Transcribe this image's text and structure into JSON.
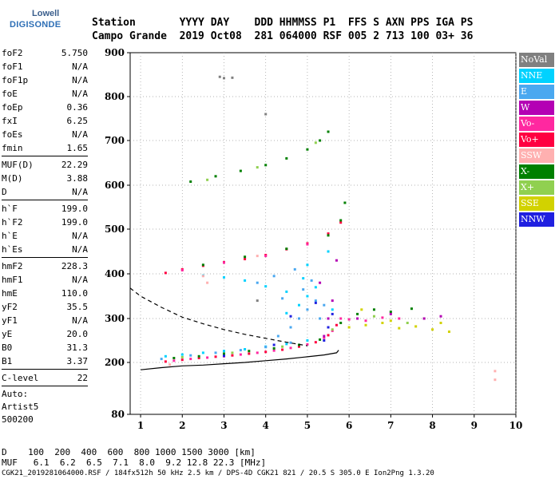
{
  "logo": {
    "line1": "Lowell",
    "line2": "DIGISONDE"
  },
  "header": {
    "row1": "Station       YYYY DAY    DDD HHMMSS P1  FFS S AXN PPS IGA PS",
    "row2": "Campo Grande  2019 Oct08  281 064000 RSF 005 2 713 100 03+ 36"
  },
  "params": {
    "groups": [
      [
        {
          "name": "foF2",
          "value": "5.750"
        },
        {
          "name": "foF1",
          "value": "N/A"
        },
        {
          "name": "foF1p",
          "value": "N/A"
        },
        {
          "name": "foE",
          "value": "N/A"
        },
        {
          "name": "foEp",
          "value": "0.36"
        },
        {
          "name": "fxI",
          "value": "6.25"
        },
        {
          "name": "foEs",
          "value": "N/A"
        },
        {
          "name": "fmin",
          "value": "1.65"
        }
      ],
      [
        {
          "name": "MUF(D)",
          "value": "22.29"
        },
        {
          "name": "M(D)",
          "value": "3.88"
        },
        {
          "name": "D",
          "value": "N/A"
        }
      ],
      [
        {
          "name": "h`F",
          "value": "199.0"
        },
        {
          "name": "h`F2",
          "value": "199.0"
        },
        {
          "name": "h`E",
          "value": "N/A"
        },
        {
          "name": "h`Es",
          "value": "N/A"
        }
      ],
      [
        {
          "name": "hmF2",
          "value": "228.3"
        },
        {
          "name": "hmF1",
          "value": "N/A"
        },
        {
          "name": "hmE",
          "value": "110.0"
        },
        {
          "name": "yF2",
          "value": "35.5"
        },
        {
          "name": "yF1",
          "value": "N/A"
        },
        {
          "name": "yE",
          "value": "20.0"
        },
        {
          "name": "B0",
          "value": "31.3"
        },
        {
          "name": "B1",
          "value": "3.37"
        }
      ],
      [
        {
          "name": "C-level",
          "value": "22"
        }
      ]
    ],
    "auto_label": "Auto:",
    "artist": "Artist5",
    "code": "500200"
  },
  "legend": [
    {
      "label": "NoVal",
      "color": "#808080"
    },
    {
      "label": "NNE",
      "color": "#00d2ff"
    },
    {
      "label": "E",
      "color": "#4aa8f0"
    },
    {
      "label": "W",
      "color": "#b400b4"
    },
    {
      "label": "Vo-",
      "color": "#ff28a0"
    },
    {
      "label": "Vo+",
      "color": "#ff0040"
    },
    {
      "label": "SSW",
      "color": "#ffb0b0"
    },
    {
      "label": "X-",
      "color": "#008000"
    },
    {
      "label": "X+",
      "color": "#90d050"
    },
    {
      "label": "SSE",
      "color": "#d2d200"
    },
    {
      "label": "NNW",
      "color": "#2020e0"
    }
  ],
  "distance_table": {
    "row1": "D    100  200  400  600  800 1000 1500 3000 [km]",
    "row2": "MUF   6.1  6.2  6.5  7.1  8.0  9.2 12.8 22.3 [MHz]"
  },
  "footer": "CGK21_2019281064000.RSF / 184fx512h 50 kHz 2.5 km / DPS-4D CGK21 821 / 20.5 S 305.0 E Ion2Png 1.3.20",
  "chart_data": {
    "type": "scatter",
    "title": "",
    "xlabel": "",
    "ylabel": "",
    "x_range": [
      0.75,
      10
    ],
    "y_range": [
      80,
      900
    ],
    "x_ticks": [
      1,
      2,
      3,
      4,
      5,
      6,
      7,
      8,
      9,
      10
    ],
    "y_ticks": [
      80,
      200,
      300,
      400,
      500,
      600,
      700,
      800,
      900
    ],
    "grid": "dotted",
    "series": [
      {
        "name": "Vo+",
        "color": "#ff0040",
        "points": [
          [
            1.6,
            202
          ],
          [
            2.0,
            206
          ],
          [
            2.4,
            210
          ],
          [
            2.8,
            213
          ],
          [
            3.2,
            216
          ],
          [
            3.6,
            220
          ],
          [
            4.0,
            224
          ],
          [
            4.4,
            229
          ],
          [
            4.8,
            236
          ],
          [
            5.2,
            246
          ],
          [
            5.5,
            262
          ],
          [
            5.7,
            285
          ],
          [
            1.6,
            402
          ],
          [
            2.0,
            410
          ],
          [
            2.5,
            418
          ],
          [
            3.0,
            426
          ],
          [
            3.5,
            433
          ],
          [
            4.0,
            442
          ],
          [
            4.5,
            455
          ],
          [
            5.0,
            468
          ],
          [
            5.5,
            490
          ],
          [
            5.8,
            515
          ]
        ]
      },
      {
        "name": "Vo-",
        "color": "#ff28a0",
        "points": [
          [
            1.8,
            204
          ],
          [
            2.2,
            208
          ],
          [
            2.6,
            211
          ],
          [
            3.0,
            214
          ],
          [
            3.4,
            218
          ],
          [
            3.8,
            222
          ],
          [
            4.2,
            227
          ],
          [
            4.6,
            233
          ],
          [
            5.0,
            241
          ],
          [
            5.4,
            256
          ],
          [
            5.6,
            272
          ],
          [
            5.8,
            300
          ],
          [
            6.0,
            298
          ],
          [
            6.4,
            295
          ],
          [
            6.8,
            302
          ],
          [
            7.2,
            300
          ],
          [
            2.0,
            408
          ],
          [
            3.0,
            425
          ],
          [
            4.0,
            440
          ],
          [
            5.0,
            466
          ]
        ]
      },
      {
        "name": "X-",
        "color": "#008000",
        "points": [
          [
            1.8,
            210
          ],
          [
            2.4,
            214
          ],
          [
            3.0,
            220
          ],
          [
            3.6,
            226
          ],
          [
            4.2,
            232
          ],
          [
            4.8,
            240
          ],
          [
            5.3,
            252
          ],
          [
            5.8,
            290
          ],
          [
            6.2,
            310
          ],
          [
            6.6,
            320
          ],
          [
            7.0,
            315
          ],
          [
            7.5,
            322
          ],
          [
            2.5,
            420
          ],
          [
            3.5,
            438
          ],
          [
            4.5,
            456
          ],
          [
            5.5,
            486
          ],
          [
            5.8,
            520
          ],
          [
            5.9,
            560
          ],
          [
            2.2,
            608
          ],
          [
            2.8,
            620
          ],
          [
            3.4,
            632
          ],
          [
            4.0,
            645
          ],
          [
            4.5,
            660
          ],
          [
            5.0,
            680
          ],
          [
            5.3,
            700
          ],
          [
            5.5,
            720
          ]
        ]
      },
      {
        "name": "X+",
        "color": "#90d050",
        "points": [
          [
            2.0,
            212
          ],
          [
            3.2,
            222
          ],
          [
            4.4,
            236
          ],
          [
            5.6,
            275
          ],
          [
            6.6,
            305
          ],
          [
            7.4,
            290
          ],
          [
            7.8,
            300
          ],
          [
            2.6,
            612
          ],
          [
            3.8,
            640
          ],
          [
            5.2,
            695
          ]
        ]
      },
      {
        "name": "NNE",
        "color": "#00d2ff",
        "points": [
          [
            1.6,
            214
          ],
          [
            2.0,
            218
          ],
          [
            2.5,
            222
          ],
          [
            3.0,
            226
          ],
          [
            3.5,
            230
          ],
          [
            4.0,
            236
          ],
          [
            4.5,
            242
          ],
          [
            5.0,
            250
          ],
          [
            4.5,
            312
          ],
          [
            4.8,
            330
          ],
          [
            5.0,
            350
          ],
          [
            5.2,
            370
          ],
          [
            4.9,
            390
          ],
          [
            3.5,
            385
          ],
          [
            4.0,
            372
          ],
          [
            4.5,
            360
          ],
          [
            3.0,
            392
          ],
          [
            2.5,
            396
          ],
          [
            5.6,
            320
          ],
          [
            5.0,
            420
          ],
          [
            5.5,
            450
          ]
        ]
      },
      {
        "name": "E",
        "color": "#4aa8f0",
        "points": [
          [
            1.5,
            208
          ],
          [
            2.2,
            216
          ],
          [
            2.8,
            222
          ],
          [
            3.4,
            228
          ],
          [
            4.0,
            235
          ],
          [
            4.6,
            245
          ],
          [
            4.3,
            260
          ],
          [
            4.6,
            280
          ],
          [
            4.8,
            300
          ],
          [
            5.0,
            320
          ],
          [
            5.2,
            340
          ],
          [
            4.4,
            345
          ],
          [
            4.9,
            365
          ],
          [
            5.1,
            385
          ],
          [
            3.8,
            380
          ],
          [
            4.2,
            395
          ],
          [
            5.3,
            300
          ],
          [
            5.4,
            330
          ],
          [
            4.7,
            410
          ]
        ]
      },
      {
        "name": "W",
        "color": "#b400b4",
        "points": [
          [
            5.4,
            260
          ],
          [
            5.5,
            300
          ],
          [
            5.6,
            340
          ],
          [
            5.3,
            380
          ],
          [
            6.2,
            300
          ],
          [
            7.0,
            310
          ],
          [
            7.8,
            300
          ],
          [
            8.2,
            305
          ],
          [
            5.7,
            430
          ]
        ]
      },
      {
        "name": "SSE",
        "color": "#d2d200",
        "points": [
          [
            6.0,
            280
          ],
          [
            6.4,
            285
          ],
          [
            6.8,
            290
          ],
          [
            7.2,
            278
          ],
          [
            7.6,
            282
          ],
          [
            8.0,
            275
          ],
          [
            8.4,
            270
          ],
          [
            6.3,
            320
          ],
          [
            7.0,
            295
          ],
          [
            8.2,
            290
          ]
        ]
      },
      {
        "name": "NNW",
        "color": "#2020e0",
        "points": [
          [
            5.4,
            250
          ],
          [
            5.5,
            280
          ],
          [
            5.6,
            310
          ],
          [
            5.2,
            335
          ],
          [
            4.6,
            305
          ],
          [
            3.0,
            215
          ],
          [
            4.2,
            240
          ]
        ]
      },
      {
        "name": "SSW",
        "color": "#ffb0b0",
        "points": [
          [
            2.5,
            395
          ],
          [
            2.6,
            380
          ],
          [
            1.7,
            195
          ],
          [
            9.5,
            180
          ],
          [
            9.5,
            160
          ],
          [
            3.8,
            440
          ]
        ]
      },
      {
        "name": "NoVal",
        "color": "#808080",
        "points": [
          [
            3.0,
            842
          ],
          [
            3.2,
            843
          ],
          [
            2.9,
            845
          ],
          [
            4.0,
            760
          ],
          [
            3.8,
            340
          ]
        ]
      }
    ],
    "curves": [
      {
        "name": "profile",
        "style": "solid",
        "points": [
          [
            1.0,
            183
          ],
          [
            1.5,
            188
          ],
          [
            2.0,
            192
          ],
          [
            2.5,
            194
          ],
          [
            3.0,
            197
          ],
          [
            3.5,
            200
          ],
          [
            4.0,
            204
          ],
          [
            4.5,
            208
          ],
          [
            5.0,
            213
          ],
          [
            5.4,
            217
          ],
          [
            5.7,
            222
          ],
          [
            5.75,
            228
          ]
        ]
      },
      {
        "name": "reference",
        "style": "dashed",
        "points": [
          [
            0.75,
            368
          ],
          [
            1.0,
            350
          ],
          [
            1.5,
            325
          ],
          [
            2.0,
            303
          ],
          [
            2.5,
            288
          ],
          [
            3.0,
            275
          ],
          [
            3.5,
            264
          ],
          [
            4.0,
            255
          ],
          [
            4.5,
            246
          ],
          [
            5.0,
            238
          ]
        ]
      }
    ]
  }
}
